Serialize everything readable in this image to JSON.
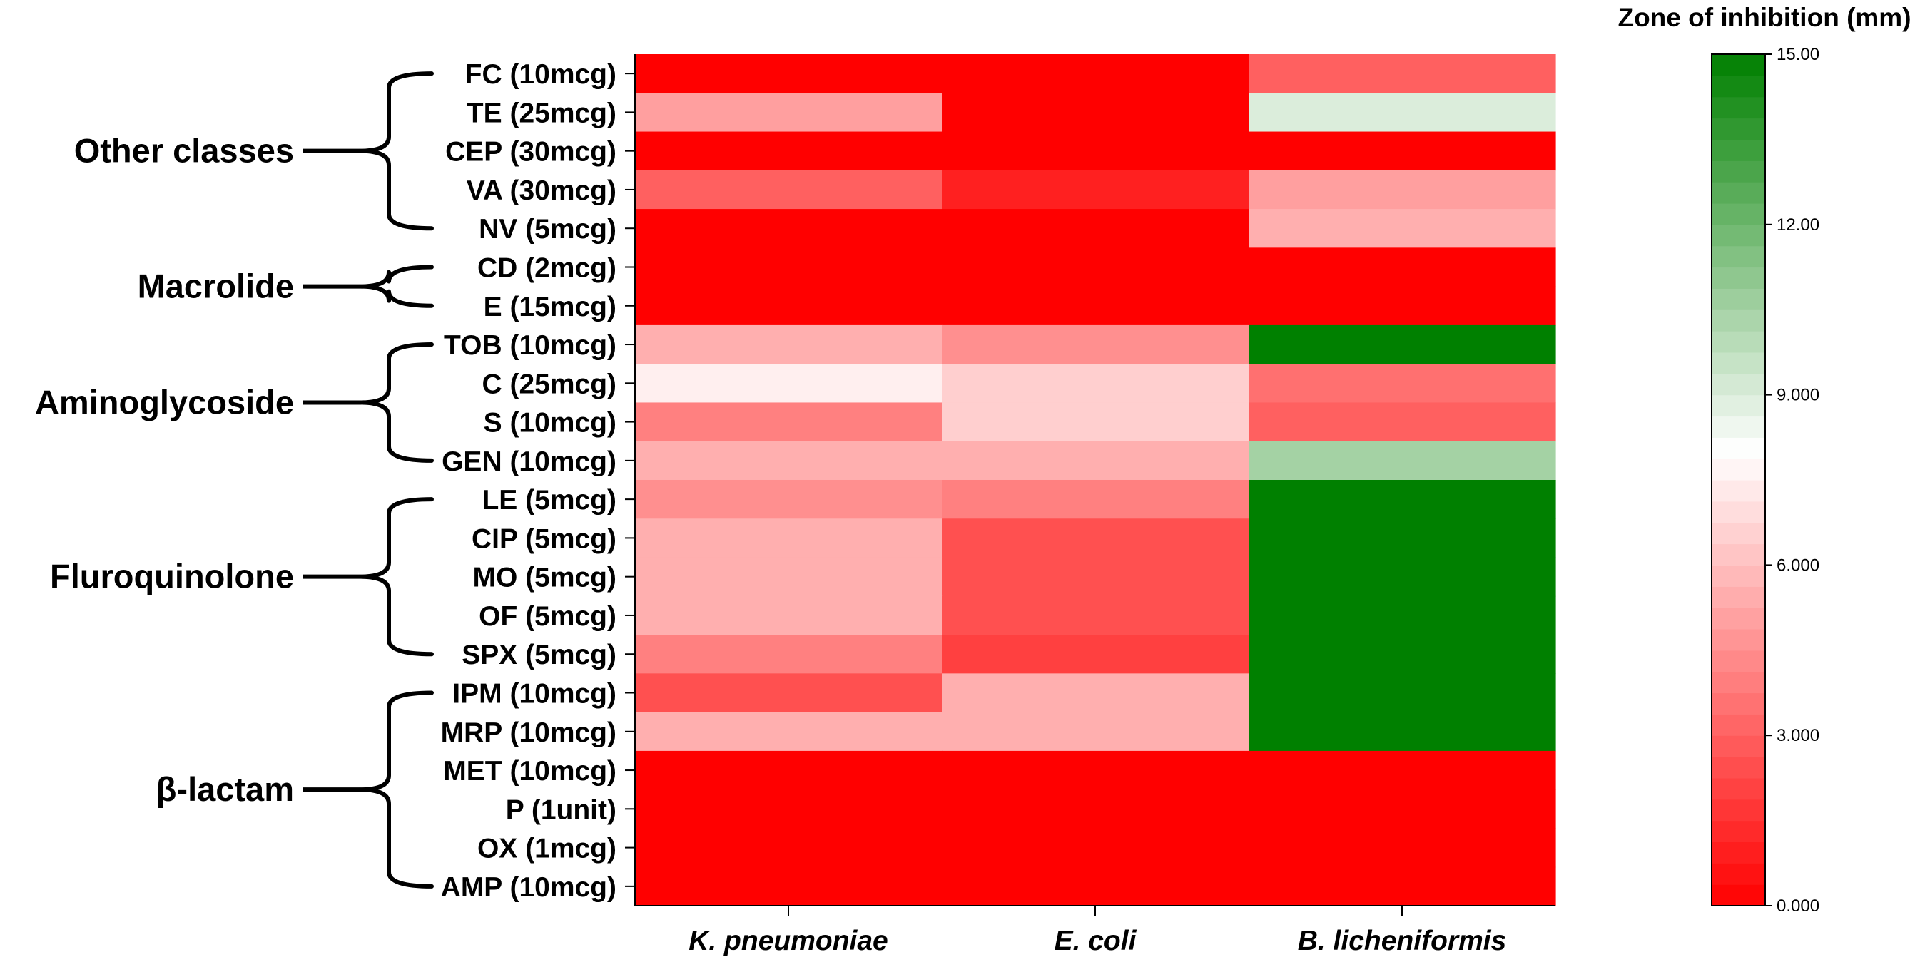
{
  "chart_data": {
    "type": "heatmap",
    "title": "",
    "rows": [
      "FC (10mcg)",
      "TE (25mcg)",
      "CEP (30mcg)",
      "VA (30mcg)",
      "NV (5mcg)",
      "CD (2mcg)",
      "E (15mcg)",
      "TOB (10mcg)",
      "C (25mcg)",
      "S (10mcg)",
      "GEN (10mcg)",
      "LE (5mcg)",
      "CIP (5mcg)",
      "MO (5mcg)",
      "OF (5mcg)",
      "SPX (5mcg)",
      "IPM (10mcg)",
      "MRP (10mcg)",
      "MET (10mcg)",
      "P (1unit)",
      "OX (1mcg)",
      "AMP (10mcg)"
    ],
    "columns": [
      "K. pneumoniae",
      "E. coli",
      "B. licheniformis"
    ],
    "values": [
      [
        0,
        0,
        3
      ],
      [
        5,
        0,
        9
      ],
      [
        0,
        0,
        0
      ],
      [
        3,
        1,
        5
      ],
      [
        0,
        0,
        5.5
      ],
      [
        0,
        0,
        0
      ],
      [
        0,
        0,
        0
      ],
      [
        5.5,
        4.5,
        15
      ],
      [
        7.5,
        6.5,
        3.5
      ],
      [
        4,
        6.5,
        3
      ],
      [
        5.5,
        5.5,
        10.5
      ],
      [
        4.5,
        4,
        15
      ],
      [
        5.5,
        2.5,
        15
      ],
      [
        5.5,
        2.5,
        15
      ],
      [
        5.5,
        2.5,
        15
      ],
      [
        4,
        2,
        15
      ],
      [
        2.5,
        5.5,
        15
      ],
      [
        5.5,
        5.5,
        15
      ],
      [
        0,
        0,
        0
      ],
      [
        0,
        0,
        0
      ],
      [
        0,
        0,
        0
      ],
      [
        0,
        0,
        0
      ]
    ],
    "groups": [
      {
        "name": "Other classes",
        "start": 0,
        "end": 4
      },
      {
        "name": "Macrolide",
        "start": 5,
        "end": 6
      },
      {
        "name": "Aminoglycoside",
        "start": 7,
        "end": 10
      },
      {
        "name": "Fluroquinolone",
        "start": 11,
        "end": 15
      },
      {
        "name": "β-lactam",
        "start": 16,
        "end": 21
      }
    ],
    "colorbar": {
      "title": "Zone of inhibition (mm)",
      "min": 0,
      "max": 15,
      "ticks": [
        0,
        3,
        6,
        9,
        12,
        15
      ],
      "tick_labels": [
        "0.000",
        "3.000",
        "6.000",
        "9.000",
        "12.00",
        "15.00"
      ],
      "color_low": "#ff0000",
      "color_mid": "#ffffff",
      "color_high": "#008000",
      "mid_value": 8,
      "steps": 40
    }
  }
}
